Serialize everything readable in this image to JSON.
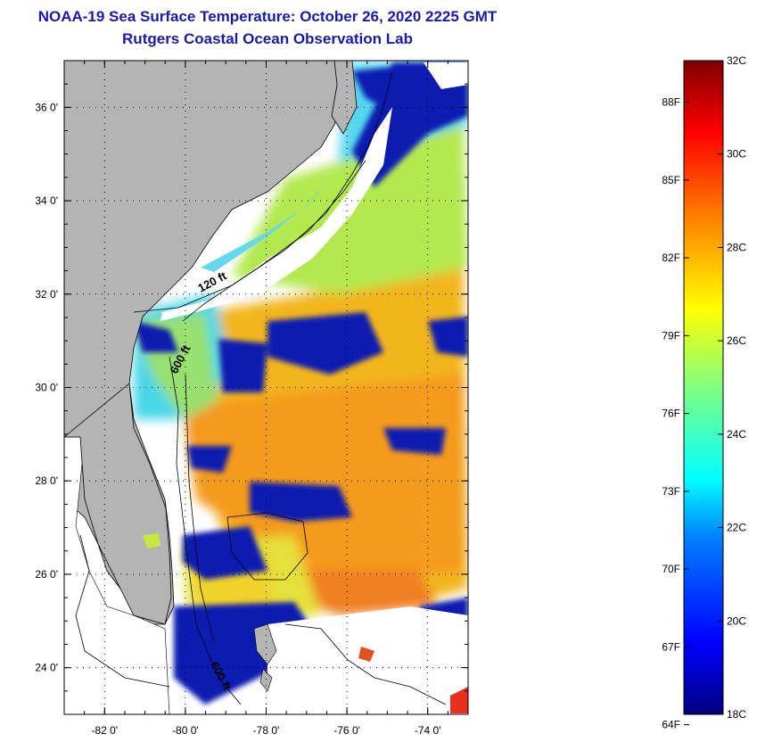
{
  "title_line1": "NOAA-19 Sea Surface Temperature:  October 26, 2020 2225 GMT",
  "title_line2": "Rutgers Coastal Ocean Observation Lab",
  "map": {
    "lon_range": [
      -83,
      -73
    ],
    "lat_range": [
      23,
      37
    ],
    "lon_ticks": [
      {
        "value": -82,
        "label": "-82 0'"
      },
      {
        "value": -80,
        "label": "-80 0'"
      },
      {
        "value": -78,
        "label": "-78 0'"
      },
      {
        "value": -76,
        "label": "-76 0'"
      },
      {
        "value": -74,
        "label": "-74 0'"
      }
    ],
    "lat_ticks": [
      {
        "value": 36,
        "label": "36 0'"
      },
      {
        "value": 34,
        "label": "34 0'"
      },
      {
        "value": 32,
        "label": "32 0'"
      },
      {
        "value": 30,
        "label": "30 0'"
      },
      {
        "value": 28,
        "label": "28 0'"
      },
      {
        "value": 26,
        "label": "26 0'"
      },
      {
        "value": 24,
        "label": "24 0'"
      }
    ],
    "contour_labels": [
      "120 ft",
      "600 ft",
      "600 ft"
    ],
    "land_color": "#b4b4b4"
  },
  "colorbar": {
    "min_c": 18,
    "max_c": 32,
    "celsius": [
      {
        "value": 32,
        "label": "32C"
      },
      {
        "value": 30,
        "label": "30C"
      },
      {
        "value": 28,
        "label": "28C"
      },
      {
        "value": 26,
        "label": "26C"
      },
      {
        "value": 24,
        "label": "24C"
      },
      {
        "value": 22,
        "label": "22C"
      },
      {
        "value": 20,
        "label": "20C"
      },
      {
        "value": 18,
        "label": "18C"
      }
    ],
    "fahrenheit": [
      {
        "value": 88,
        "label": "88F"
      },
      {
        "value": 85,
        "label": "85F"
      },
      {
        "value": 82,
        "label": "82F"
      },
      {
        "value": 79,
        "label": "79F"
      },
      {
        "value": 76,
        "label": "76F"
      },
      {
        "value": 73,
        "label": "73F"
      },
      {
        "value": 70,
        "label": "70F"
      },
      {
        "value": 67,
        "label": "67F"
      },
      {
        "value": 64,
        "label": "64F"
      }
    ]
  }
}
